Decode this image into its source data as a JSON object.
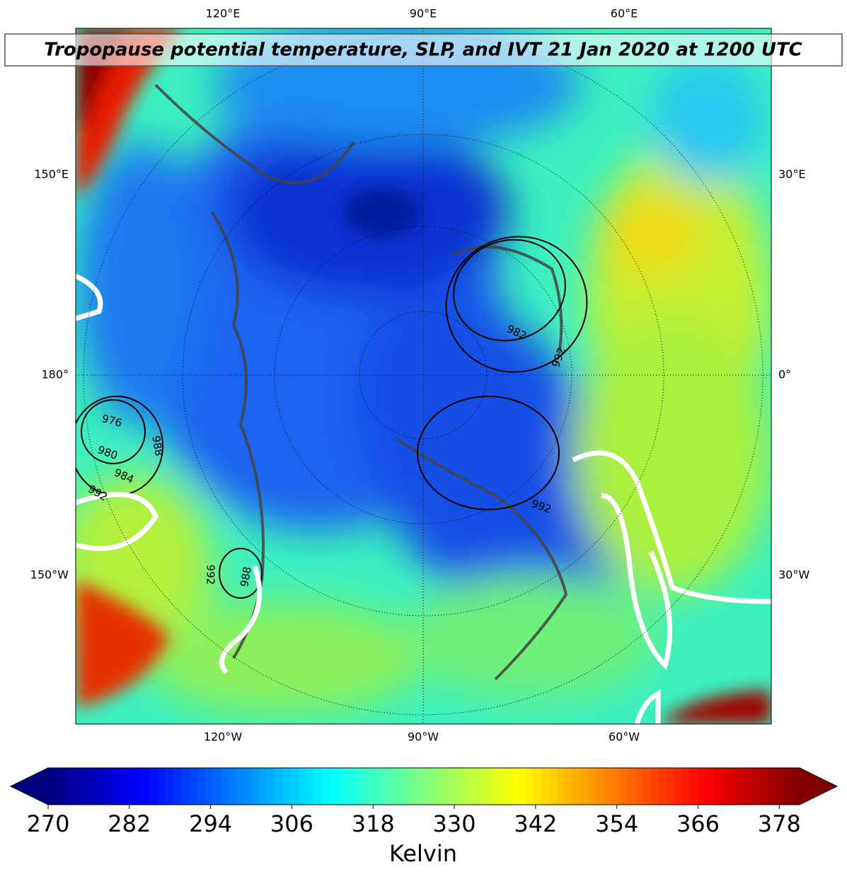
{
  "title": "Tropopause potential temperature, SLP, and IVT 21 Jan 2020 at 1200 UTC",
  "longitude_labels": {
    "top": [
      "120°E",
      "90°E",
      "60°E"
    ],
    "left": [
      "150°E",
      "180°",
      "150°W"
    ],
    "right": [
      "30°E",
      "0°",
      "30°W"
    ],
    "bottom": [
      "120°W",
      "90°W",
      "60°W"
    ]
  },
  "slp_contour_labels": [
    976,
    980,
    984,
    992,
    988,
    988,
    992,
    992,
    992,
    982
  ],
  "colorbar": {
    "label": "Kelvin",
    "colormap": "jet",
    "extend": "both",
    "lim": [
      270,
      381
    ],
    "ticks": [
      270,
      282,
      294,
      306,
      318,
      330,
      342,
      354,
      366,
      378
    ]
  }
}
